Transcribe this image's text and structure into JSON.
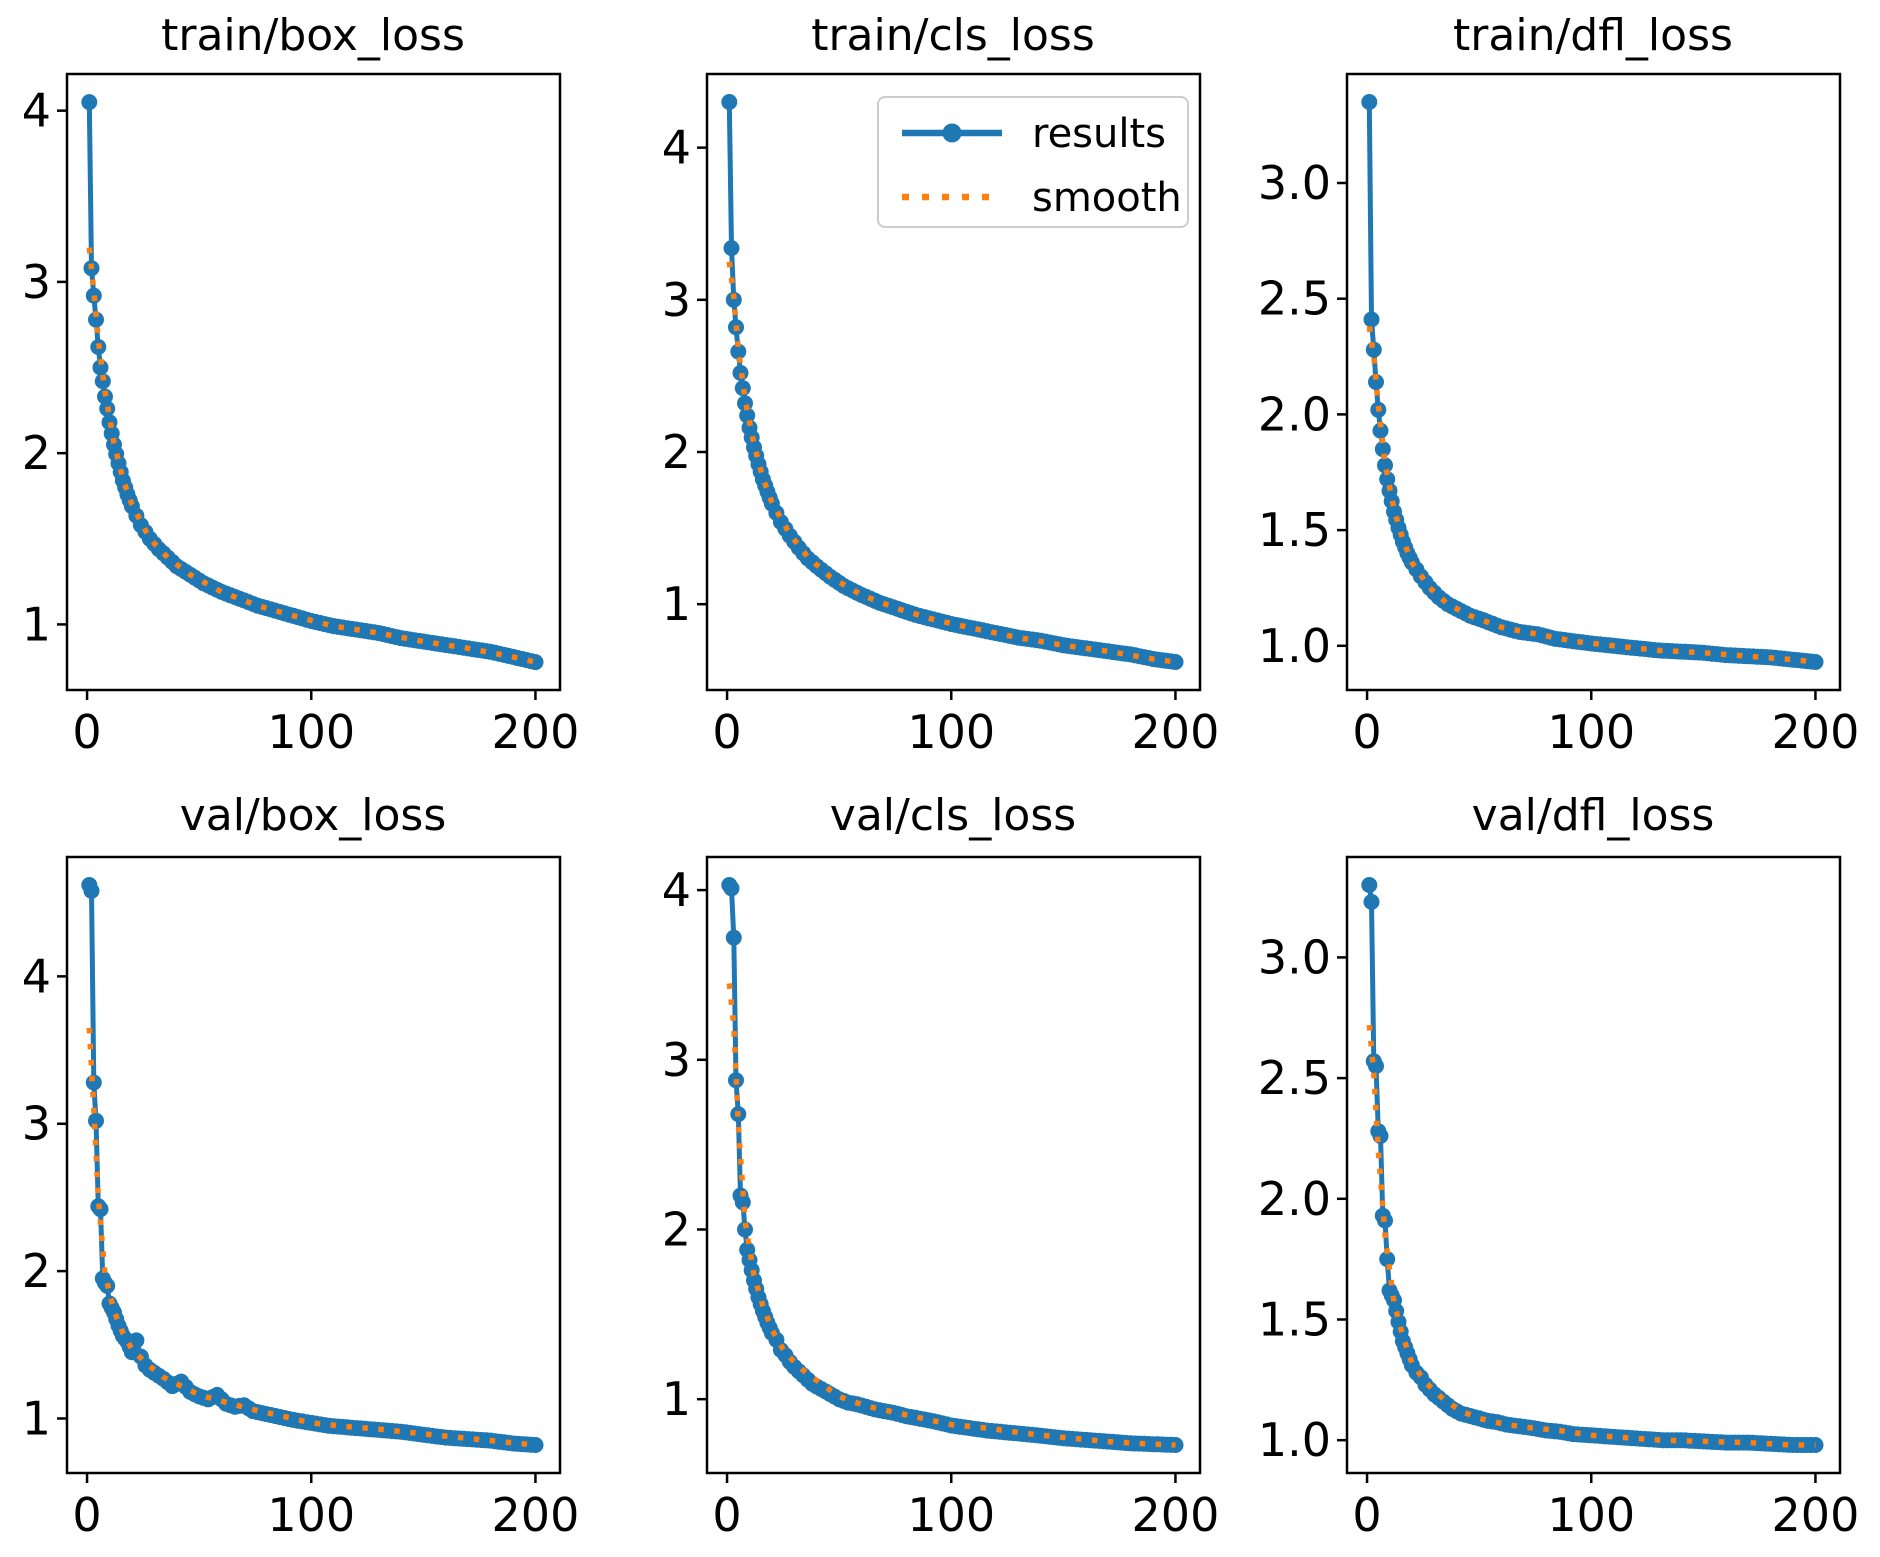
{
  "figure": {
    "background": "#ffffff",
    "spine_color": "#000000",
    "text_color": "#000000",
    "accent_blue": "#1f77b4",
    "accent_orange": "#ff7f0e"
  },
  "legend": {
    "location": "upper-right of train/cls_loss panel",
    "background": "#ffffff",
    "border_color": "#cccccc",
    "entries": [
      {
        "label": "results",
        "color": "#1f77b4",
        "style": "solid-line-with-circle-markers"
      },
      {
        "label": "smooth",
        "color": "#ff7f0e",
        "style": "dotted-line"
      }
    ]
  },
  "chart_data": [
    {
      "type": "line",
      "title": "train/box_loss",
      "xlabel": "",
      "ylabel": "",
      "epochs": 200,
      "x_axis": {
        "lim": [
          -8.95,
          210.95
        ],
        "ticks": [
          0,
          100,
          200
        ],
        "tick_labels": [
          "0",
          "100",
          "200"
        ]
      },
      "y_axis": {
        "lim": [
          0.617,
          4.214
        ],
        "ticks": [
          1,
          2,
          3,
          4
        ],
        "tick_labels": [
          "1",
          "2",
          "3",
          "4"
        ]
      },
      "grid": false,
      "series": [
        {
          "name": "results",
          "color": "#1f77b4",
          "marker": "circle",
          "x": [
            1,
            2,
            3,
            4,
            5,
            6,
            7,
            8,
            9,
            10,
            12,
            14,
            16,
            18,
            20,
            24,
            28,
            32,
            36,
            40,
            46,
            52,
            60,
            68,
            76,
            84,
            92,
            100,
            110,
            120,
            130,
            140,
            150,
            160,
            170,
            180,
            190,
            200
          ],
          "y": [
            4.05,
            3.08,
            2.92,
            2.78,
            2.62,
            2.5,
            2.42,
            2.33,
            2.26,
            2.18,
            2.05,
            1.94,
            1.84,
            1.76,
            1.69,
            1.58,
            1.5,
            1.44,
            1.39,
            1.34,
            1.29,
            1.24,
            1.19,
            1.15,
            1.11,
            1.08,
            1.05,
            1.02,
            0.99,
            0.97,
            0.95,
            0.92,
            0.9,
            0.88,
            0.86,
            0.84,
            0.81,
            0.78
          ]
        },
        {
          "name": "smooth",
          "color": "#ff7f0e",
          "line": "dotted",
          "x": [
            1,
            3,
            5,
            8,
            12,
            16,
            20,
            28,
            36,
            46,
            60,
            76,
            92,
            110,
            130,
            150,
            170,
            190,
            200
          ],
          "y": [
            3.2,
            2.95,
            2.66,
            2.36,
            2.06,
            1.85,
            1.7,
            1.5,
            1.39,
            1.29,
            1.19,
            1.11,
            1.05,
            0.99,
            0.95,
            0.9,
            0.86,
            0.81,
            0.78
          ]
        }
      ]
    },
    {
      "type": "line",
      "title": "train/cls_loss",
      "xlabel": "",
      "ylabel": "",
      "epochs": 200,
      "x_axis": {
        "lim": [
          -8.95,
          210.95
        ],
        "ticks": [
          0,
          100,
          200
        ],
        "tick_labels": [
          "0",
          "100",
          "200"
        ]
      },
      "y_axis": {
        "lim": [
          0.436,
          4.484
        ],
        "ticks": [
          1,
          2,
          3,
          4
        ],
        "tick_labels": [
          "1",
          "2",
          "3",
          "4"
        ]
      },
      "grid": false,
      "legend_here": true,
      "series": [
        {
          "name": "results",
          "color": "#1f77b4",
          "marker": "circle",
          "x": [
            1,
            2,
            3,
            4,
            5,
            6,
            7,
            8,
            9,
            10,
            12,
            14,
            16,
            18,
            20,
            24,
            28,
            32,
            36,
            40,
            46,
            52,
            60,
            68,
            76,
            84,
            92,
            100,
            110,
            120,
            130,
            140,
            150,
            160,
            170,
            180,
            190,
            200
          ],
          "y": [
            4.3,
            3.34,
            3.0,
            2.82,
            2.66,
            2.52,
            2.42,
            2.32,
            2.24,
            2.16,
            2.03,
            1.92,
            1.82,
            1.74,
            1.66,
            1.54,
            1.45,
            1.37,
            1.3,
            1.25,
            1.18,
            1.12,
            1.06,
            1.01,
            0.97,
            0.93,
            0.9,
            0.87,
            0.84,
            0.81,
            0.78,
            0.76,
            0.73,
            0.71,
            0.69,
            0.67,
            0.64,
            0.62
          ]
        },
        {
          "name": "smooth",
          "color": "#ff7f0e",
          "line": "dotted",
          "x": [
            1,
            3,
            5,
            8,
            12,
            16,
            20,
            28,
            36,
            46,
            60,
            76,
            92,
            110,
            130,
            150,
            170,
            190,
            200
          ],
          "y": [
            3.25,
            3.02,
            2.68,
            2.35,
            2.05,
            1.83,
            1.67,
            1.46,
            1.31,
            1.18,
            1.06,
            0.97,
            0.9,
            0.84,
            0.78,
            0.73,
            0.69,
            0.64,
            0.62
          ]
        }
      ]
    },
    {
      "type": "line",
      "title": "train/dfl_loss",
      "xlabel": "",
      "ylabel": "",
      "epochs": 200,
      "x_axis": {
        "lim": [
          -8.95,
          210.95
        ],
        "ticks": [
          0,
          100,
          200
        ],
        "tick_labels": [
          "0",
          "100",
          "200"
        ]
      },
      "y_axis": {
        "lim": [
          0.809,
          3.471
        ],
        "ticks": [
          1.0,
          1.5,
          2.0,
          2.5,
          3.0
        ],
        "tick_labels": [
          "1.0",
          "1.5",
          "2.0",
          "2.5",
          "3.0"
        ]
      },
      "grid": false,
      "series": [
        {
          "name": "results",
          "color": "#1f77b4",
          "marker": "circle",
          "x": [
            1,
            2,
            3,
            4,
            5,
            6,
            7,
            8,
            9,
            10,
            12,
            14,
            16,
            18,
            20,
            24,
            28,
            32,
            36,
            40,
            46,
            52,
            60,
            68,
            76,
            84,
            92,
            100,
            110,
            120,
            130,
            140,
            150,
            160,
            170,
            180,
            190,
            200
          ],
          "y": [
            3.35,
            2.41,
            2.28,
            2.14,
            2.02,
            1.93,
            1.85,
            1.78,
            1.72,
            1.67,
            1.58,
            1.51,
            1.45,
            1.4,
            1.36,
            1.3,
            1.25,
            1.21,
            1.18,
            1.16,
            1.13,
            1.11,
            1.08,
            1.06,
            1.05,
            1.03,
            1.02,
            1.01,
            1.0,
            0.99,
            0.98,
            0.975,
            0.97,
            0.96,
            0.955,
            0.95,
            0.94,
            0.93
          ]
        },
        {
          "name": "smooth",
          "color": "#ff7f0e",
          "line": "dotted",
          "x": [
            1,
            3,
            5,
            8,
            12,
            16,
            20,
            28,
            36,
            46,
            60,
            76,
            92,
            110,
            130,
            150,
            170,
            190,
            200
          ],
          "y": [
            2.38,
            2.25,
            2.04,
            1.79,
            1.59,
            1.46,
            1.36,
            1.25,
            1.18,
            1.13,
            1.08,
            1.05,
            1.02,
            1.0,
            0.98,
            0.97,
            0.955,
            0.94,
            0.93
          ]
        }
      ]
    },
    {
      "type": "line",
      "title": "val/box_loss",
      "xlabel": "",
      "ylabel": "",
      "epochs": 200,
      "x_axis": {
        "lim": [
          -8.95,
          210.95
        ],
        "ticks": [
          0,
          100,
          200
        ],
        "tick_labels": [
          "0",
          "100",
          "200"
        ]
      },
      "y_axis": {
        "lim": [
          0.63,
          4.81
        ],
        "ticks": [
          1,
          2,
          3,
          4
        ],
        "tick_labels": [
          "1",
          "2",
          "3",
          "4"
        ]
      },
      "grid": false,
      "series": [
        {
          "name": "results",
          "color": "#1f77b4",
          "marker": "circle",
          "x": [
            1,
            2,
            3,
            4,
            5,
            6,
            7,
            8,
            9,
            10,
            12,
            14,
            16,
            18,
            20,
            22,
            24,
            26,
            28,
            30,
            34,
            38,
            42,
            46,
            50,
            54,
            58,
            62,
            66,
            70,
            74,
            80,
            86,
            92,
            100,
            108,
            116,
            124,
            132,
            140,
            150,
            160,
            170,
            180,
            190,
            200
          ],
          "y": [
            4.62,
            4.58,
            3.28,
            3.02,
            2.44,
            2.42,
            1.95,
            1.92,
            1.9,
            1.78,
            1.72,
            1.63,
            1.56,
            1.52,
            1.45,
            1.53,
            1.42,
            1.36,
            1.33,
            1.31,
            1.27,
            1.22,
            1.25,
            1.18,
            1.15,
            1.13,
            1.16,
            1.1,
            1.08,
            1.09,
            1.05,
            1.03,
            1.01,
            0.99,
            0.97,
            0.95,
            0.94,
            0.93,
            0.92,
            0.91,
            0.89,
            0.87,
            0.86,
            0.85,
            0.83,
            0.82
          ]
        },
        {
          "name": "smooth",
          "color": "#ff7f0e",
          "line": "dotted",
          "x": [
            1,
            3,
            5,
            8,
            12,
            16,
            20,
            26,
            34,
            42,
            50,
            62,
            74,
            86,
            100,
            116,
            132,
            150,
            170,
            190,
            200
          ],
          "y": [
            3.65,
            3.1,
            2.5,
            1.98,
            1.73,
            1.58,
            1.47,
            1.38,
            1.28,
            1.22,
            1.16,
            1.11,
            1.06,
            1.02,
            0.97,
            0.945,
            0.925,
            0.895,
            0.865,
            0.835,
            0.82
          ]
        }
      ]
    },
    {
      "type": "line",
      "title": "val/cls_loss",
      "xlabel": "",
      "ylabel": "",
      "epochs": 200,
      "x_axis": {
        "lim": [
          -8.95,
          210.95
        ],
        "ticks": [
          0,
          100,
          200
        ],
        "tick_labels": [
          "0",
          "100",
          "200"
        ]
      },
      "y_axis": {
        "lim": [
          0.565,
          4.195
        ],
        "ticks": [
          1,
          2,
          3,
          4
        ],
        "tick_labels": [
          "1",
          "2",
          "3",
          "4"
        ]
      },
      "grid": false,
      "series": [
        {
          "name": "results",
          "color": "#1f77b4",
          "marker": "circle",
          "x": [
            1,
            2,
            3,
            4,
            5,
            6,
            7,
            8,
            9,
            10,
            12,
            14,
            16,
            18,
            20,
            22,
            24,
            26,
            28,
            30,
            34,
            38,
            42,
            46,
            50,
            54,
            58,
            62,
            66,
            70,
            74,
            80,
            86,
            92,
            100,
            108,
            116,
            124,
            132,
            140,
            150,
            160,
            170,
            180,
            190,
            200
          ],
          "y": [
            4.03,
            4.01,
            3.72,
            2.88,
            2.68,
            2.2,
            2.16,
            2.0,
            1.88,
            1.82,
            1.7,
            1.6,
            1.52,
            1.45,
            1.39,
            1.35,
            1.29,
            1.26,
            1.22,
            1.19,
            1.14,
            1.09,
            1.06,
            1.03,
            1.0,
            0.98,
            0.97,
            0.955,
            0.94,
            0.93,
            0.92,
            0.9,
            0.885,
            0.87,
            0.845,
            0.83,
            0.815,
            0.805,
            0.795,
            0.785,
            0.77,
            0.76,
            0.75,
            0.74,
            0.735,
            0.73
          ]
        },
        {
          "name": "smooth",
          "color": "#ff7f0e",
          "line": "dotted",
          "x": [
            1,
            3,
            5,
            8,
            12,
            16,
            20,
            26,
            34,
            42,
            50,
            62,
            74,
            86,
            100,
            116,
            132,
            150,
            170,
            190,
            200
          ],
          "y": [
            3.45,
            3.2,
            2.62,
            2.05,
            1.73,
            1.55,
            1.41,
            1.27,
            1.17,
            1.09,
            1.015,
            0.96,
            0.925,
            0.89,
            0.85,
            0.83,
            0.8,
            0.775,
            0.75,
            0.735,
            0.73
          ]
        }
      ]
    },
    {
      "type": "line",
      "title": "val/dfl_loss",
      "xlabel": "",
      "ylabel": "",
      "epochs": 200,
      "x_axis": {
        "lim": [
          -8.95,
          210.95
        ],
        "ticks": [
          0,
          100,
          200
        ],
        "tick_labels": [
          "0",
          "100",
          "200"
        ]
      },
      "y_axis": {
        "lim": [
          0.864,
          3.416
        ],
        "ticks": [
          1.0,
          1.5,
          2.0,
          2.5,
          3.0
        ],
        "tick_labels": [
          "1.0",
          "1.5",
          "2.0",
          "2.5",
          "3.0"
        ]
      },
      "grid": false,
      "series": [
        {
          "name": "results",
          "color": "#1f77b4",
          "marker": "circle",
          "x": [
            1,
            2,
            3,
            4,
            5,
            6,
            7,
            8,
            9,
            10,
            12,
            14,
            16,
            18,
            20,
            22,
            24,
            26,
            28,
            30,
            34,
            38,
            42,
            46,
            50,
            54,
            58,
            62,
            66,
            70,
            74,
            80,
            86,
            92,
            100,
            108,
            116,
            124,
            132,
            140,
            150,
            160,
            170,
            180,
            190,
            200
          ],
          "y": [
            3.3,
            3.23,
            2.57,
            2.55,
            2.28,
            2.26,
            1.93,
            1.91,
            1.75,
            1.62,
            1.58,
            1.49,
            1.41,
            1.36,
            1.31,
            1.28,
            1.26,
            1.23,
            1.21,
            1.19,
            1.16,
            1.13,
            1.11,
            1.1,
            1.09,
            1.08,
            1.075,
            1.065,
            1.06,
            1.055,
            1.05,
            1.04,
            1.035,
            1.025,
            1.02,
            1.015,
            1.01,
            1.005,
            1.0,
            1.0,
            0.995,
            0.99,
            0.99,
            0.985,
            0.98,
            0.98
          ]
        },
        {
          "name": "smooth",
          "color": "#ff7f0e",
          "line": "dotted",
          "x": [
            1,
            3,
            5,
            8,
            12,
            16,
            20,
            26,
            34,
            42,
            50,
            62,
            74,
            86,
            100,
            116,
            132,
            150,
            170,
            190,
            200
          ],
          "y": [
            2.72,
            2.52,
            2.2,
            1.85,
            1.57,
            1.43,
            1.32,
            1.24,
            1.17,
            1.12,
            1.09,
            1.065,
            1.05,
            1.04,
            1.02,
            1.01,
            1.0,
            0.995,
            0.99,
            0.98,
            0.98
          ]
        }
      ]
    }
  ]
}
